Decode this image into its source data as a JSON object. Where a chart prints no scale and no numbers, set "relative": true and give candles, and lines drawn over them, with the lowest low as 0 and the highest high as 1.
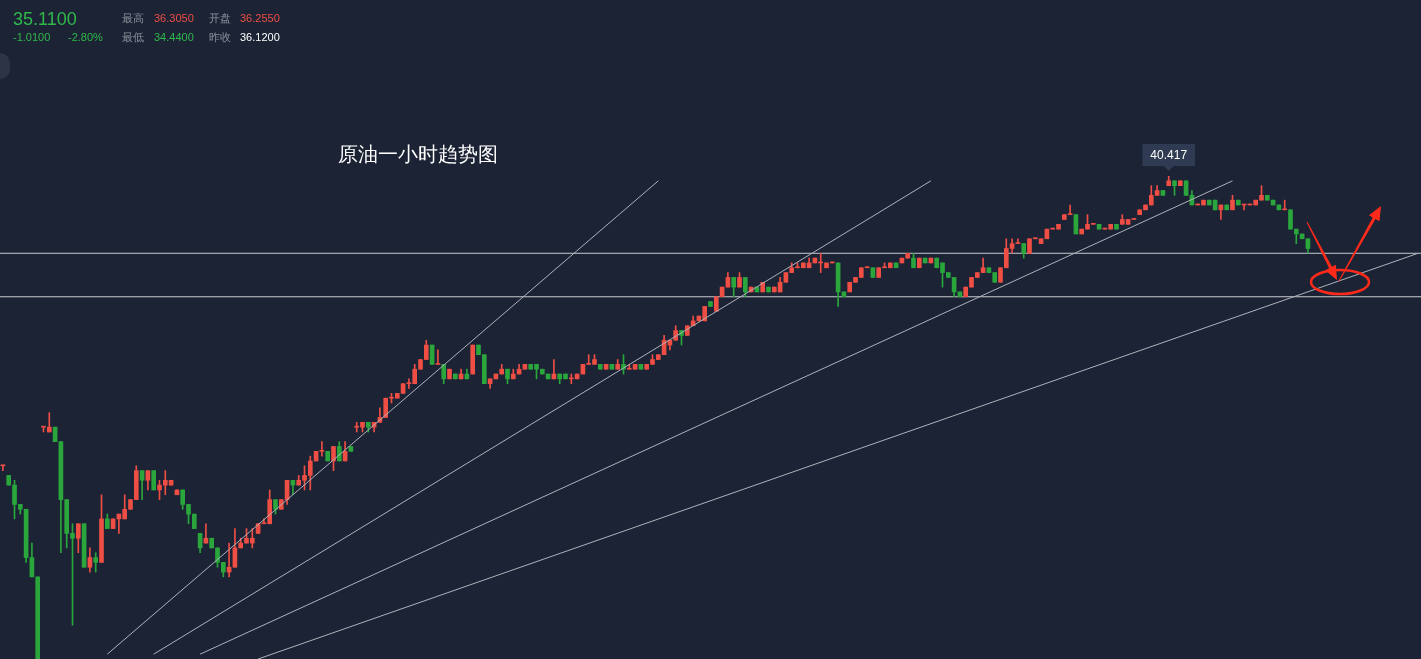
{
  "chart_data": {
    "type": "candlestick",
    "title": "原油一小时趋势图",
    "relative": true,
    "tick_labels": false,
    "legend": false,
    "categories": [
      null,
      null,
      null,
      null,
      null,
      null,
      null,
      null,
      null,
      null,
      null,
      null,
      null,
      null,
      null,
      null,
      null,
      null,
      null,
      null,
      null,
      null,
      null,
      null,
      null,
      null,
      null,
      null,
      null,
      null,
      null,
      null,
      null,
      null,
      null,
      null,
      null,
      null,
      null,
      null,
      null,
      null,
      null,
      null,
      null,
      null,
      null,
      null,
      null,
      null,
      null,
      null,
      null,
      null,
      null,
      null,
      null,
      null,
      null,
      null,
      null,
      null,
      null,
      null,
      null,
      null,
      null,
      null,
      null,
      null,
      null,
      null,
      null,
      null,
      null,
      null,
      null,
      null,
      null,
      null,
      null,
      null,
      null,
      null,
      null,
      null,
      null,
      null,
      null,
      null,
      null,
      null,
      null,
      null,
      null,
      null,
      null,
      null,
      null,
      null,
      null,
      null,
      null,
      null,
      null,
      null,
      null,
      null,
      null,
      null,
      null,
      null,
      null,
      null,
      null,
      null,
      null,
      null,
      null,
      null,
      null,
      null,
      null,
      null,
      null,
      null,
      null,
      null,
      null,
      null,
      null,
      null,
      null,
      null,
      null,
      null,
      null,
      null,
      null,
      null,
      null,
      null,
      null,
      null,
      null,
      null,
      null,
      null,
      null,
      null,
      null,
      null,
      null,
      null,
      null,
      null,
      null,
      null,
      null,
      null,
      null,
      null,
      null,
      null,
      null,
      null,
      null,
      null,
      null,
      null,
      null,
      null,
      null,
      null,
      null,
      null,
      null,
      null,
      null,
      null,
      null,
      null,
      null,
      null,
      null,
      null,
      null,
      null,
      null,
      null,
      null,
      null,
      null,
      null,
      null,
      null,
      null,
      null,
      null,
      null,
      null,
      null,
      null,
      null,
      null,
      null,
      null,
      null,
      null,
      null,
      null,
      null,
      null,
      null,
      null,
      null,
      null,
      null,
      null,
      null,
      null,
      null,
      null,
      null,
      null,
      null,
      null,
      null,
      null,
      null,
      null,
      null,
      null,
      null,
      null,
      null,
      null,
      null,
      null,
      null,
      null,
      null,
      null,
      null,
      null
    ],
    "ohlc": [
      [
        0.4,
        0.4,
        0.39,
        0.4
      ],
      [
        0.38,
        0.38,
        0.36,
        0.36
      ],
      [
        0.36,
        0.37,
        0.29,
        0.32
      ],
      [
        0.32,
        0.32,
        0.3,
        0.31
      ],
      [
        0.31,
        0.31,
        0.2,
        0.21
      ],
      [
        0.21,
        0.24,
        0.17,
        0.17
      ],
      [
        0.17,
        0.17,
        0,
        0
      ],
      [
        0.48,
        0.48,
        0.47,
        0.48
      ],
      [
        0.47,
        0.51,
        0.47,
        0.48
      ],
      [
        0.48,
        0.48,
        0.45,
        0.45
      ],
      [
        0.45,
        0.45,
        0.22,
        0.33
      ],
      [
        0.33,
        0.33,
        0.23,
        0.26
      ],
      [
        0.26,
        0.28,
        0.07,
        0.25
      ],
      [
        0.25,
        0.28,
        0.22,
        0.28
      ],
      [
        0.28,
        0.28,
        0.19,
        0.19
      ],
      [
        0.19,
        0.23,
        0.18,
        0.21
      ],
      [
        0.21,
        0.22,
        0.18,
        0.2
      ],
      [
        0.2,
        0.34,
        0.2,
        0.29
      ],
      [
        0.29,
        0.3,
        0.27,
        0.27
      ],
      [
        0.27,
        0.29,
        0.27,
        0.29
      ],
      [
        0.29,
        0.3,
        0.26,
        0.3
      ],
      [
        0.29,
        0.34,
        0.29,
        0.31
      ],
      [
        0.31,
        0.33,
        0.31,
        0.33
      ],
      [
        0.33,
        0.4,
        0.33,
        0.39
      ],
      [
        0.39,
        0.39,
        0.33,
        0.37
      ],
      [
        0.37,
        0.39,
        0.35,
        0.39
      ],
      [
        0.39,
        0.39,
        0.35,
        0.35
      ],
      [
        0.35,
        0.37,
        0.33,
        0.36
      ],
      [
        0.36,
        0.39,
        0.34,
        0.37
      ],
      [
        0.36,
        0.37,
        0.36,
        0.37
      ],
      [
        0.34,
        0.35,
        0.34,
        0.35
      ],
      [
        0.35,
        0.35,
        0.31,
        0.32
      ],
      [
        0.32,
        0.32,
        0.28,
        0.3
      ],
      [
        0.3,
        0.3,
        0.27,
        0.27
      ],
      [
        0.26,
        0.26,
        0.22,
        0.23
      ],
      [
        0.24,
        0.28,
        0.24,
        0.25
      ],
      [
        0.25,
        0.25,
        0.23,
        0.23
      ],
      [
        0.23,
        0.23,
        0.19,
        0.2
      ],
      [
        0.2,
        0.2,
        0.17,
        0.18
      ],
      [
        0.18,
        0.24,
        0.17,
        0.19
      ],
      [
        0.19,
        0.27,
        0.19,
        0.23
      ],
      [
        0.23,
        0.25,
        0.23,
        0.24
      ],
      [
        0.24,
        0.27,
        0.24,
        0.25
      ],
      [
        0.24,
        0.27,
        0.23,
        0.25
      ],
      [
        0.26,
        0.28,
        0.26,
        0.28
      ],
      [
        0.28,
        0.29,
        0.28,
        0.28
      ],
      [
        0.28,
        0.35,
        0.28,
        0.33
      ],
      [
        0.33,
        0.33,
        0.3,
        0.31
      ],
      [
        0.31,
        0.33,
        0.31,
        0.33
      ],
      [
        0.33,
        0.37,
        0.32,
        0.37
      ],
      [
        0.37,
        0.37,
        0.34,
        0.36
      ],
      [
        0.36,
        0.38,
        0.36,
        0.37
      ],
      [
        0.37,
        0.4,
        0.35,
        0.38
      ],
      [
        0.38,
        0.42,
        0.35,
        0.41
      ],
      [
        0.41,
        0.43,
        0.41,
        0.43
      ],
      [
        0.43,
        0.45,
        0.42,
        0.43
      ],
      [
        0.43,
        0.43,
        0.41,
        0.41
      ],
      [
        0.41,
        0.44,
        0.39,
        0.44
      ],
      [
        0.44,
        0.45,
        0.41,
        0.41
      ],
      [
        0.41,
        0.45,
        0.41,
        0.43
      ],
      [
        0.44,
        0.44,
        0.43,
        0.43
      ],
      [
        0.48,
        0.49,
        0.47,
        0.48
      ],
      [
        0.48,
        0.49,
        0.47,
        0.49
      ],
      [
        0.49,
        0.49,
        0.47,
        0.48
      ],
      [
        0.48,
        0.49,
        0.47,
        0.49
      ],
      [
        0.49,
        0.52,
        0.49,
        0.5
      ],
      [
        0.5,
        0.54,
        0.5,
        0.54
      ],
      [
        0.54,
        0.55,
        0.53,
        0.54
      ],
      [
        0.54,
        0.55,
        0.54,
        0.55
      ],
      [
        0.55,
        0.57,
        0.55,
        0.57
      ],
      [
        0.57,
        0.58,
        0.56,
        0.57
      ],
      [
        0.57,
        0.61,
        0.57,
        0.6
      ],
      [
        0.6,
        0.62,
        0.6,
        0.62
      ],
      [
        0.62,
        0.66,
        0.62,
        0.65
      ],
      [
        0.65,
        0.65,
        0.61,
        0.61
      ],
      [
        0.61,
        0.64,
        0.61,
        0.61
      ],
      [
        0.61,
        0.61,
        0.57,
        0.58
      ],
      [
        0.58,
        0.6,
        0.58,
        0.6
      ],
      [
        0.59,
        0.59,
        0.58,
        0.58
      ],
      [
        0.58,
        0.6,
        0.58,
        0.59
      ],
      [
        0.59,
        0.6,
        0.58,
        0.58
      ],
      [
        0.59,
        0.65,
        0.59,
        0.65
      ],
      [
        0.65,
        0.65,
        0.63,
        0.63
      ],
      [
        0.63,
        0.63,
        0.57,
        0.57
      ],
      [
        0.57,
        0.58,
        0.56,
        0.58
      ],
      [
        0.58,
        0.59,
        0.58,
        0.59
      ],
      [
        0.59,
        0.61,
        0.59,
        0.6
      ],
      [
        0.6,
        0.6,
        0.57,
        0.58
      ],
      [
        0.58,
        0.6,
        0.58,
        0.59
      ],
      [
        0.59,
        0.61,
        0.59,
        0.6
      ],
      [
        0.6,
        0.61,
        0.6,
        0.61
      ],
      [
        0.61,
        0.61,
        0.6,
        0.6
      ],
      [
        0.61,
        0.61,
        0.58,
        0.6
      ],
      [
        0.6,
        0.6,
        0.59,
        0.59
      ],
      [
        0.59,
        0.59,
        0.58,
        0.58
      ],
      [
        0.58,
        0.62,
        0.58,
        0.59
      ],
      [
        0.59,
        0.59,
        0.57,
        0.58
      ],
      [
        0.59,
        0.59,
        0.58,
        0.58
      ],
      [
        0.58,
        0.59,
        0.57,
        0.58
      ],
      [
        0.58,
        0.59,
        0.58,
        0.59
      ],
      [
        0.59,
        0.61,
        0.59,
        0.61
      ],
      [
        0.61,
        0.63,
        0.61,
        0.61
      ],
      [
        0.61,
        0.63,
        0.61,
        0.62
      ],
      [
        0.61,
        0.61,
        0.6,
        0.6
      ],
      [
        0.6,
        0.61,
        0.6,
        0.61
      ],
      [
        0.61,
        0.61,
        0.6,
        0.6
      ],
      [
        0.6,
        0.62,
        0.6,
        0.61
      ],
      [
        0.61,
        0.63,
        0.59,
        0.6
      ],
      [
        0.6,
        0.61,
        0.6,
        0.6
      ],
      [
        0.6,
        0.61,
        0.6,
        0.61
      ],
      [
        0.61,
        0.61,
        0.6,
        0.6
      ],
      [
        0.6,
        0.61,
        0.6,
        0.61
      ],
      [
        0.61,
        0.63,
        0.61,
        0.62
      ],
      [
        0.62,
        0.63,
        0.62,
        0.63
      ],
      [
        0.63,
        0.67,
        0.63,
        0.66
      ],
      [
        0.65,
        0.66,
        0.64,
        0.66
      ],
      [
        0.66,
        0.69,
        0.66,
        0.68
      ],
      [
        0.68,
        0.68,
        0.65,
        0.67
      ],
      [
        0.67,
        0.69,
        0.67,
        0.69
      ],
      [
        0.69,
        0.71,
        0.69,
        0.7
      ],
      [
        0.7,
        0.71,
        0.7,
        0.71
      ],
      [
        0.7,
        0.73,
        0.7,
        0.73
      ],
      [
        0.74,
        0.74,
        0.73,
        0.73
      ],
      [
        0.72,
        0.75,
        0.72,
        0.75
      ],
      [
        0.75,
        0.77,
        0.75,
        0.77
      ],
      [
        0.77,
        0.8,
        0.77,
        0.79
      ],
      [
        0.79,
        0.79,
        0.75,
        0.77
      ],
      [
        0.77,
        0.8,
        0.77,
        0.79
      ],
      [
        0.79,
        0.79,
        0.75,
        0.76
      ],
      [
        0.76,
        0.77,
        0.76,
        0.77
      ],
      [
        0.77,
        0.77,
        0.76,
        0.76
      ],
      [
        0.76,
        0.78,
        0.76,
        0.78
      ],
      [
        0.77,
        0.77,
        0.76,
        0.76
      ],
      [
        0.76,
        0.77,
        0.76,
        0.77
      ],
      [
        0.76,
        0.79,
        0.76,
        0.78
      ],
      [
        0.78,
        0.8,
        0.78,
        0.8
      ],
      [
        0.8,
        0.82,
        0.8,
        0.81
      ],
      [
        0.81,
        0.82,
        0.81,
        0.81
      ],
      [
        0.81,
        0.82,
        0.81,
        0.82
      ],
      [
        0.81,
        0.83,
        0.81,
        0.82
      ],
      [
        0.82,
        0.83,
        0.82,
        0.83
      ],
      [
        0.82,
        0.84,
        0.8,
        0.82
      ],
      [
        0.81,
        0.82,
        0.81,
        0.82
      ],
      [
        0.82,
        0.82,
        0.82,
        0.82
      ],
      [
        0.82,
        0.82,
        0.73,
        0.76
      ],
      [
        0.76,
        0.76,
        0.75,
        0.75
      ],
      [
        0.76,
        0.78,
        0.76,
        0.78
      ],
      [
        0.78,
        0.79,
        0.78,
        0.79
      ],
      [
        0.79,
        0.81,
        0.79,
        0.81
      ],
      [
        0.81,
        0.81,
        0.81,
        0.81
      ],
      [
        0.81,
        0.81,
        0.79,
        0.79
      ],
      [
        0.79,
        0.81,
        0.79,
        0.81
      ],
      [
        0.81,
        0.82,
        0.81,
        0.81
      ],
      [
        0.81,
        0.82,
        0.81,
        0.82
      ],
      [
        0.82,
        0.82,
        0.81,
        0.81
      ],
      [
        0.82,
        0.83,
        0.82,
        0.83
      ],
      [
        0.83,
        0.84,
        0.83,
        0.84
      ],
      [
        0.83,
        0.84,
        0.81,
        0.81
      ],
      [
        0.81,
        0.83,
        0.81,
        0.83
      ],
      [
        0.83,
        0.83,
        0.82,
        0.82
      ],
      [
        0.82,
        0.83,
        0.82,
        0.83
      ],
      [
        0.83,
        0.83,
        0.81,
        0.81
      ],
      [
        0.82,
        0.82,
        0.77,
        0.8
      ],
      [
        0.8,
        0.8,
        0.79,
        0.79
      ],
      [
        0.79,
        0.79,
        0.75,
        0.76
      ],
      [
        0.76,
        0.76,
        0.75,
        0.75
      ],
      [
        0.75,
        0.77,
        0.75,
        0.77
      ],
      [
        0.77,
        0.79,
        0.77,
        0.79
      ],
      [
        0.79,
        0.8,
        0.79,
        0.8
      ],
      [
        0.8,
        0.83,
        0.8,
        0.81
      ],
      [
        0.81,
        0.81,
        0.8,
        0.8
      ],
      [
        0.8,
        0.8,
        0.78,
        0.78
      ],
      [
        0.78,
        0.81,
        0.78,
        0.81
      ],
      [
        0.81,
        0.87,
        0.81,
        0.85
      ],
      [
        0.85,
        0.87,
        0.84,
        0.86
      ],
      [
        0.86,
        0.87,
        0.86,
        0.86
      ],
      [
        0.86,
        0.86,
        0.83,
        0.84
      ],
      [
        0.84,
        0.87,
        0.84,
        0.87
      ],
      [
        0.87,
        0.87,
        0.87,
        0.87
      ],
      [
        0.86,
        0.87,
        0.86,
        0.87
      ],
      [
        0.87,
        0.89,
        0.87,
        0.89
      ],
      [
        0.89,
        0.89,
        0.89,
        0.89
      ],
      [
        0.89,
        0.9,
        0.89,
        0.9
      ],
      [
        0.91,
        0.92,
        0.91,
        0.92
      ],
      [
        0.92,
        0.94,
        0.92,
        0.92
      ],
      [
        0.92,
        0.92,
        0.88,
        0.88
      ],
      [
        0.88,
        0.89,
        0.88,
        0.89
      ],
      [
        0.89,
        0.92,
        0.89,
        0.9
      ],
      [
        0.9,
        0.9,
        0.9,
        0.9
      ],
      [
        0.9,
        0.9,
        0.89,
        0.89
      ],
      [
        0.89,
        0.89,
        0.89,
        0.89
      ],
      [
        0.89,
        0.9,
        0.89,
        0.9
      ],
      [
        0.9,
        0.9,
        0.89,
        0.89
      ],
      [
        0.9,
        0.92,
        0.9,
        0.91
      ],
      [
        0.9,
        0.91,
        0.9,
        0.91
      ],
      [
        0.91,
        0.91,
        0.91,
        0.91
      ],
      [
        0.92,
        0.93,
        0.92,
        0.93
      ],
      [
        0.93,
        0.94,
        0.93,
        0.94
      ],
      [
        0.94,
        0.98,
        0.94,
        0.96
      ],
      [
        0.96,
        0.98,
        0.96,
        0.97
      ],
      [
        0.97,
        0.97,
        0.96,
        0.96
      ],
      [
        0.98,
        1,
        0.98,
        0.99
      ],
      [
        0.99,
        0.99,
        0.96,
        0.98
      ],
      [
        0.98,
        0.99,
        0.98,
        0.99
      ],
      [
        0.99,
        0.99,
        0.96,
        0.96
      ],
      [
        0.96,
        0.97,
        0.94,
        0.94
      ],
      [
        0.94,
        0.94,
        0.94,
        0.94
      ],
      [
        0.94,
        0.95,
        0.94,
        0.95
      ],
      [
        0.95,
        0.95,
        0.94,
        0.94
      ],
      [
        0.95,
        0.95,
        0.93,
        0.93
      ],
      [
        0.93,
        0.94,
        0.91,
        0.94
      ],
      [
        0.94,
        0.94,
        0.93,
        0.93
      ],
      [
        0.93,
        0.96,
        0.93,
        0.95
      ],
      [
        0.95,
        0.95,
        0.94,
        0.94
      ],
      [
        0.94,
        0.94,
        0.93,
        0.94
      ],
      [
        0.94,
        0.94,
        0.94,
        0.94
      ],
      [
        0.94,
        0.95,
        0.94,
        0.95
      ],
      [
        0.95,
        0.98,
        0.95,
        0.96
      ],
      [
        0.96,
        0.96,
        0.95,
        0.95
      ],
      [
        0.95,
        0.95,
        0.94,
        0.94
      ],
      [
        0.94,
        0.94,
        0.93,
        0.93
      ],
      [
        0.93,
        0.95,
        0.93,
        0.93
      ],
      [
        0.93,
        0.93,
        0.89,
        0.89
      ],
      [
        0.89,
        0.89,
        0.86,
        0.88
      ],
      [
        0.88,
        0.88,
        0.87,
        0.87
      ],
      [
        0.87,
        0.87,
        0.84,
        0.85
      ],
      null,
      null,
      null,
      null,
      null,
      null,
      null,
      null,
      null,
      null,
      null,
      null,
      null,
      null,
      null,
      null,
      null,
      null,
      null
    ],
    "series": [
      {
        "type": "line",
        "color": "#aeb2ba",
        "values": [
          null,
          null,
          null,
          null,
          null,
          null,
          null,
          null,
          null,
          null,
          null,
          null,
          null,
          null,
          null,
          null,
          null,
          null,
          0.01,
          null,
          null,
          null,
          null,
          null,
          null,
          null,
          null,
          null,
          null,
          null,
          null,
          null,
          null,
          null,
          null,
          null,
          null,
          null,
          null,
          null,
          null,
          null,
          null,
          null,
          null,
          null,
          null,
          null,
          null,
          null,
          null,
          null,
          null,
          null,
          null,
          null,
          null,
          null,
          null,
          null,
          null,
          null,
          null,
          null,
          null,
          null,
          null,
          null,
          null,
          null,
          null,
          null,
          null,
          null,
          null,
          null,
          null,
          null,
          null,
          null,
          null,
          null,
          null,
          null,
          null,
          null,
          null,
          null,
          null,
          null,
          null,
          null,
          null,
          null,
          null,
          null,
          null,
          null,
          null,
          null,
          null,
          null,
          null,
          null,
          null,
          null,
          null,
          null,
          null,
          null,
          null,
          null,
          null,
          0.99,
          null,
          null,
          null,
          null,
          null,
          null,
          null,
          null,
          null,
          null,
          null,
          null,
          null,
          null,
          null,
          null,
          null,
          null,
          null,
          null,
          null,
          null,
          null,
          null,
          null,
          null,
          null,
          null,
          null,
          null,
          null,
          null,
          null,
          null,
          null,
          null,
          null,
          null,
          null,
          null,
          null,
          null,
          null,
          null,
          null,
          null,
          null,
          null,
          null,
          null,
          null,
          null,
          null,
          null,
          null,
          null,
          null,
          null,
          null,
          null,
          null,
          null,
          null,
          null,
          null,
          null,
          null,
          null,
          null,
          null,
          null,
          null,
          null,
          null,
          null,
          null,
          null,
          null,
          null,
          null,
          null,
          null,
          null,
          null,
          null,
          null,
          null,
          null,
          null,
          null,
          null,
          null,
          null,
          null,
          null,
          null,
          null,
          null,
          null,
          null,
          null,
          null,
          null,
          null,
          null,
          null,
          null,
          null,
          null,
          null,
          null,
          null,
          null,
          null,
          null,
          null,
          null,
          null,
          null,
          null,
          null,
          null,
          null,
          null,
          null,
          null,
          null,
          null,
          null,
          null,
          null
        ]
      },
      {
        "type": "line",
        "color": "#aeb2ba",
        "values": [
          null,
          null,
          null,
          null,
          null,
          null,
          null,
          null,
          null,
          null,
          null,
          null,
          null,
          null,
          null,
          null,
          null,
          null,
          null,
          null,
          null,
          null,
          null,
          null,
          null,
          null,
          0.01,
          null,
          null,
          null,
          null,
          null,
          null,
          null,
          null,
          null,
          null,
          null,
          null,
          null,
          null,
          null,
          null,
          null,
          null,
          null,
          null,
          null,
          null,
          null,
          null,
          null,
          null,
          null,
          null,
          null,
          null,
          null,
          null,
          null,
          null,
          null,
          null,
          null,
          null,
          null,
          null,
          null,
          null,
          null,
          null,
          null,
          null,
          null,
          null,
          null,
          null,
          null,
          null,
          null,
          null,
          null,
          null,
          null,
          null,
          null,
          null,
          null,
          null,
          null,
          null,
          null,
          null,
          null,
          null,
          null,
          null,
          null,
          null,
          null,
          null,
          null,
          null,
          null,
          null,
          null,
          null,
          null,
          null,
          null,
          null,
          null,
          null,
          null,
          null,
          null,
          null,
          null,
          null,
          null,
          null,
          null,
          null,
          null,
          null,
          null,
          null,
          null,
          null,
          null,
          null,
          null,
          null,
          null,
          null,
          null,
          null,
          null,
          null,
          null,
          null,
          null,
          null,
          null,
          null,
          null,
          null,
          null,
          null,
          null,
          null,
          null,
          null,
          null,
          null,
          null,
          null,
          null,
          null,
          null,
          0.99,
          null,
          null,
          null,
          null,
          null,
          null,
          null,
          null,
          null,
          null,
          null,
          null,
          null,
          null,
          null,
          null,
          null,
          null,
          null,
          null,
          null,
          null,
          null,
          null,
          null,
          null,
          null,
          null,
          null,
          null,
          null,
          null,
          null,
          null,
          null,
          null,
          null,
          null,
          null,
          null,
          null,
          null,
          null,
          null,
          null,
          null,
          null,
          null,
          null,
          null,
          null,
          null,
          null,
          null,
          null,
          null,
          null,
          null,
          null,
          null,
          null,
          null,
          null,
          null,
          null,
          null,
          null,
          null,
          null,
          null,
          null,
          null,
          null,
          null,
          null,
          null,
          null,
          null,
          null,
          null,
          null,
          null,
          null,
          null
        ]
      },
      {
        "type": "line",
        "color": "#aeb2ba",
        "values": [
          null,
          null,
          null,
          null,
          null,
          null,
          null,
          null,
          null,
          null,
          null,
          null,
          null,
          null,
          null,
          null,
          null,
          null,
          null,
          null,
          null,
          null,
          null,
          null,
          null,
          null,
          null,
          null,
          null,
          null,
          null,
          null,
          null,
          null,
          0.01,
          null,
          null,
          null,
          null,
          null,
          null,
          null,
          null,
          null,
          null,
          null,
          null,
          null,
          null,
          null,
          null,
          null,
          null,
          null,
          null,
          null,
          null,
          null,
          null,
          null,
          null,
          null,
          null,
          null,
          null,
          null,
          null,
          null,
          null,
          null,
          null,
          null,
          null,
          null,
          null,
          null,
          null,
          null,
          null,
          null,
          null,
          null,
          null,
          null,
          null,
          null,
          null,
          null,
          null,
          null,
          null,
          null,
          null,
          null,
          null,
          null,
          null,
          null,
          null,
          null,
          null,
          null,
          null,
          null,
          null,
          null,
          null,
          null,
          null,
          null,
          null,
          null,
          null,
          null,
          null,
          null,
          null,
          null,
          null,
          null,
          null,
          null,
          null,
          null,
          null,
          null,
          null,
          null,
          null,
          null,
          null,
          null,
          null,
          null,
          null,
          null,
          null,
          null,
          null,
          null,
          null,
          null,
          null,
          null,
          null,
          null,
          null,
          null,
          null,
          null,
          null,
          null,
          null,
          null,
          null,
          null,
          null,
          null,
          null,
          null,
          null,
          null,
          null,
          null,
          null,
          null,
          null,
          null,
          null,
          null,
          null,
          null,
          null,
          null,
          null,
          null,
          null,
          null,
          null,
          null,
          null,
          null,
          null,
          null,
          null,
          null,
          null,
          null,
          null,
          null,
          null,
          null,
          null,
          null,
          null,
          null,
          null,
          null,
          null,
          null,
          null,
          null,
          null,
          null,
          null,
          null,
          null,
          null,
          null,
          null,
          null,
          null,
          0.99,
          null,
          null,
          null,
          null,
          null,
          null,
          null,
          null,
          null,
          null,
          null,
          null,
          null,
          null,
          null,
          null,
          null,
          null,
          null,
          null,
          null,
          null,
          null,
          null,
          null,
          null,
          null,
          null,
          null,
          null,
          null,
          null
        ]
      },
      {
        "type": "line",
        "color": "#aeb2ba",
        "values": [
          null,
          null,
          null,
          null,
          null,
          null,
          null,
          null,
          null,
          null,
          null,
          null,
          null,
          null,
          null,
          null,
          null,
          null,
          null,
          null,
          null,
          null,
          null,
          null,
          null,
          null,
          null,
          null,
          null,
          null,
          null,
          null,
          null,
          null,
          null,
          null,
          null,
          null,
          null,
          null,
          null,
          null,
          null,
          null,
          0,
          null,
          null,
          null,
          null,
          null,
          null,
          null,
          null,
          null,
          null,
          null,
          null,
          null,
          null,
          null,
          null,
          null,
          null,
          null,
          null,
          null,
          null,
          null,
          null,
          null,
          null,
          null,
          null,
          null,
          null,
          null,
          null,
          null,
          null,
          null,
          null,
          null,
          null,
          null,
          null,
          null,
          null,
          null,
          null,
          null,
          null,
          null,
          null,
          null,
          null,
          null,
          null,
          null,
          null,
          null,
          null,
          null,
          null,
          null,
          null,
          null,
          null,
          null,
          null,
          null,
          null,
          null,
          null,
          null,
          null,
          null,
          null,
          null,
          null,
          null,
          null,
          null,
          null,
          null,
          null,
          null,
          null,
          null,
          null,
          null,
          null,
          null,
          null,
          null,
          null,
          null,
          null,
          null,
          null,
          null,
          null,
          null,
          null,
          null,
          null,
          null,
          null,
          null,
          null,
          null,
          null,
          null,
          null,
          null,
          null,
          null,
          null,
          null,
          null,
          null,
          null,
          null,
          null,
          null,
          null,
          null,
          null,
          null,
          null,
          null,
          null,
          null,
          null,
          null,
          null,
          null,
          null,
          null,
          null,
          null,
          null,
          null,
          null,
          null,
          null,
          null,
          null,
          null,
          null,
          null,
          null,
          null,
          null,
          null,
          null,
          null,
          null,
          null,
          null,
          null,
          null,
          null,
          null,
          null,
          null,
          null,
          null,
          null,
          null,
          null,
          null,
          null,
          null,
          null,
          null,
          null,
          null,
          null,
          null,
          null,
          null,
          null,
          null,
          null,
          null,
          null,
          null,
          null,
          null,
          null,
          null,
          null,
          null,
          null,
          null,
          null,
          null,
          null,
          null,
          null,
          null,
          null,
          null,
          null,
          0.84
        ]
      }
    ],
    "ref_lines": [
      {
        "axis": "y",
        "value": 0.84,
        "color": "#c8cbd1"
      },
      {
        "axis": "y",
        "value": 0.75,
        "color": "#c8cbd1"
      }
    ],
    "annotations": [
      "35.1100",
      "-1.0100",
      "-2.80%",
      "最高",
      "36.3050",
      "开盘",
      "36.2550",
      "最低",
      "34.4400",
      "昨收",
      "36.1200",
      {
        "text": "40.417",
        "y": 1
      }
    ]
  }
}
